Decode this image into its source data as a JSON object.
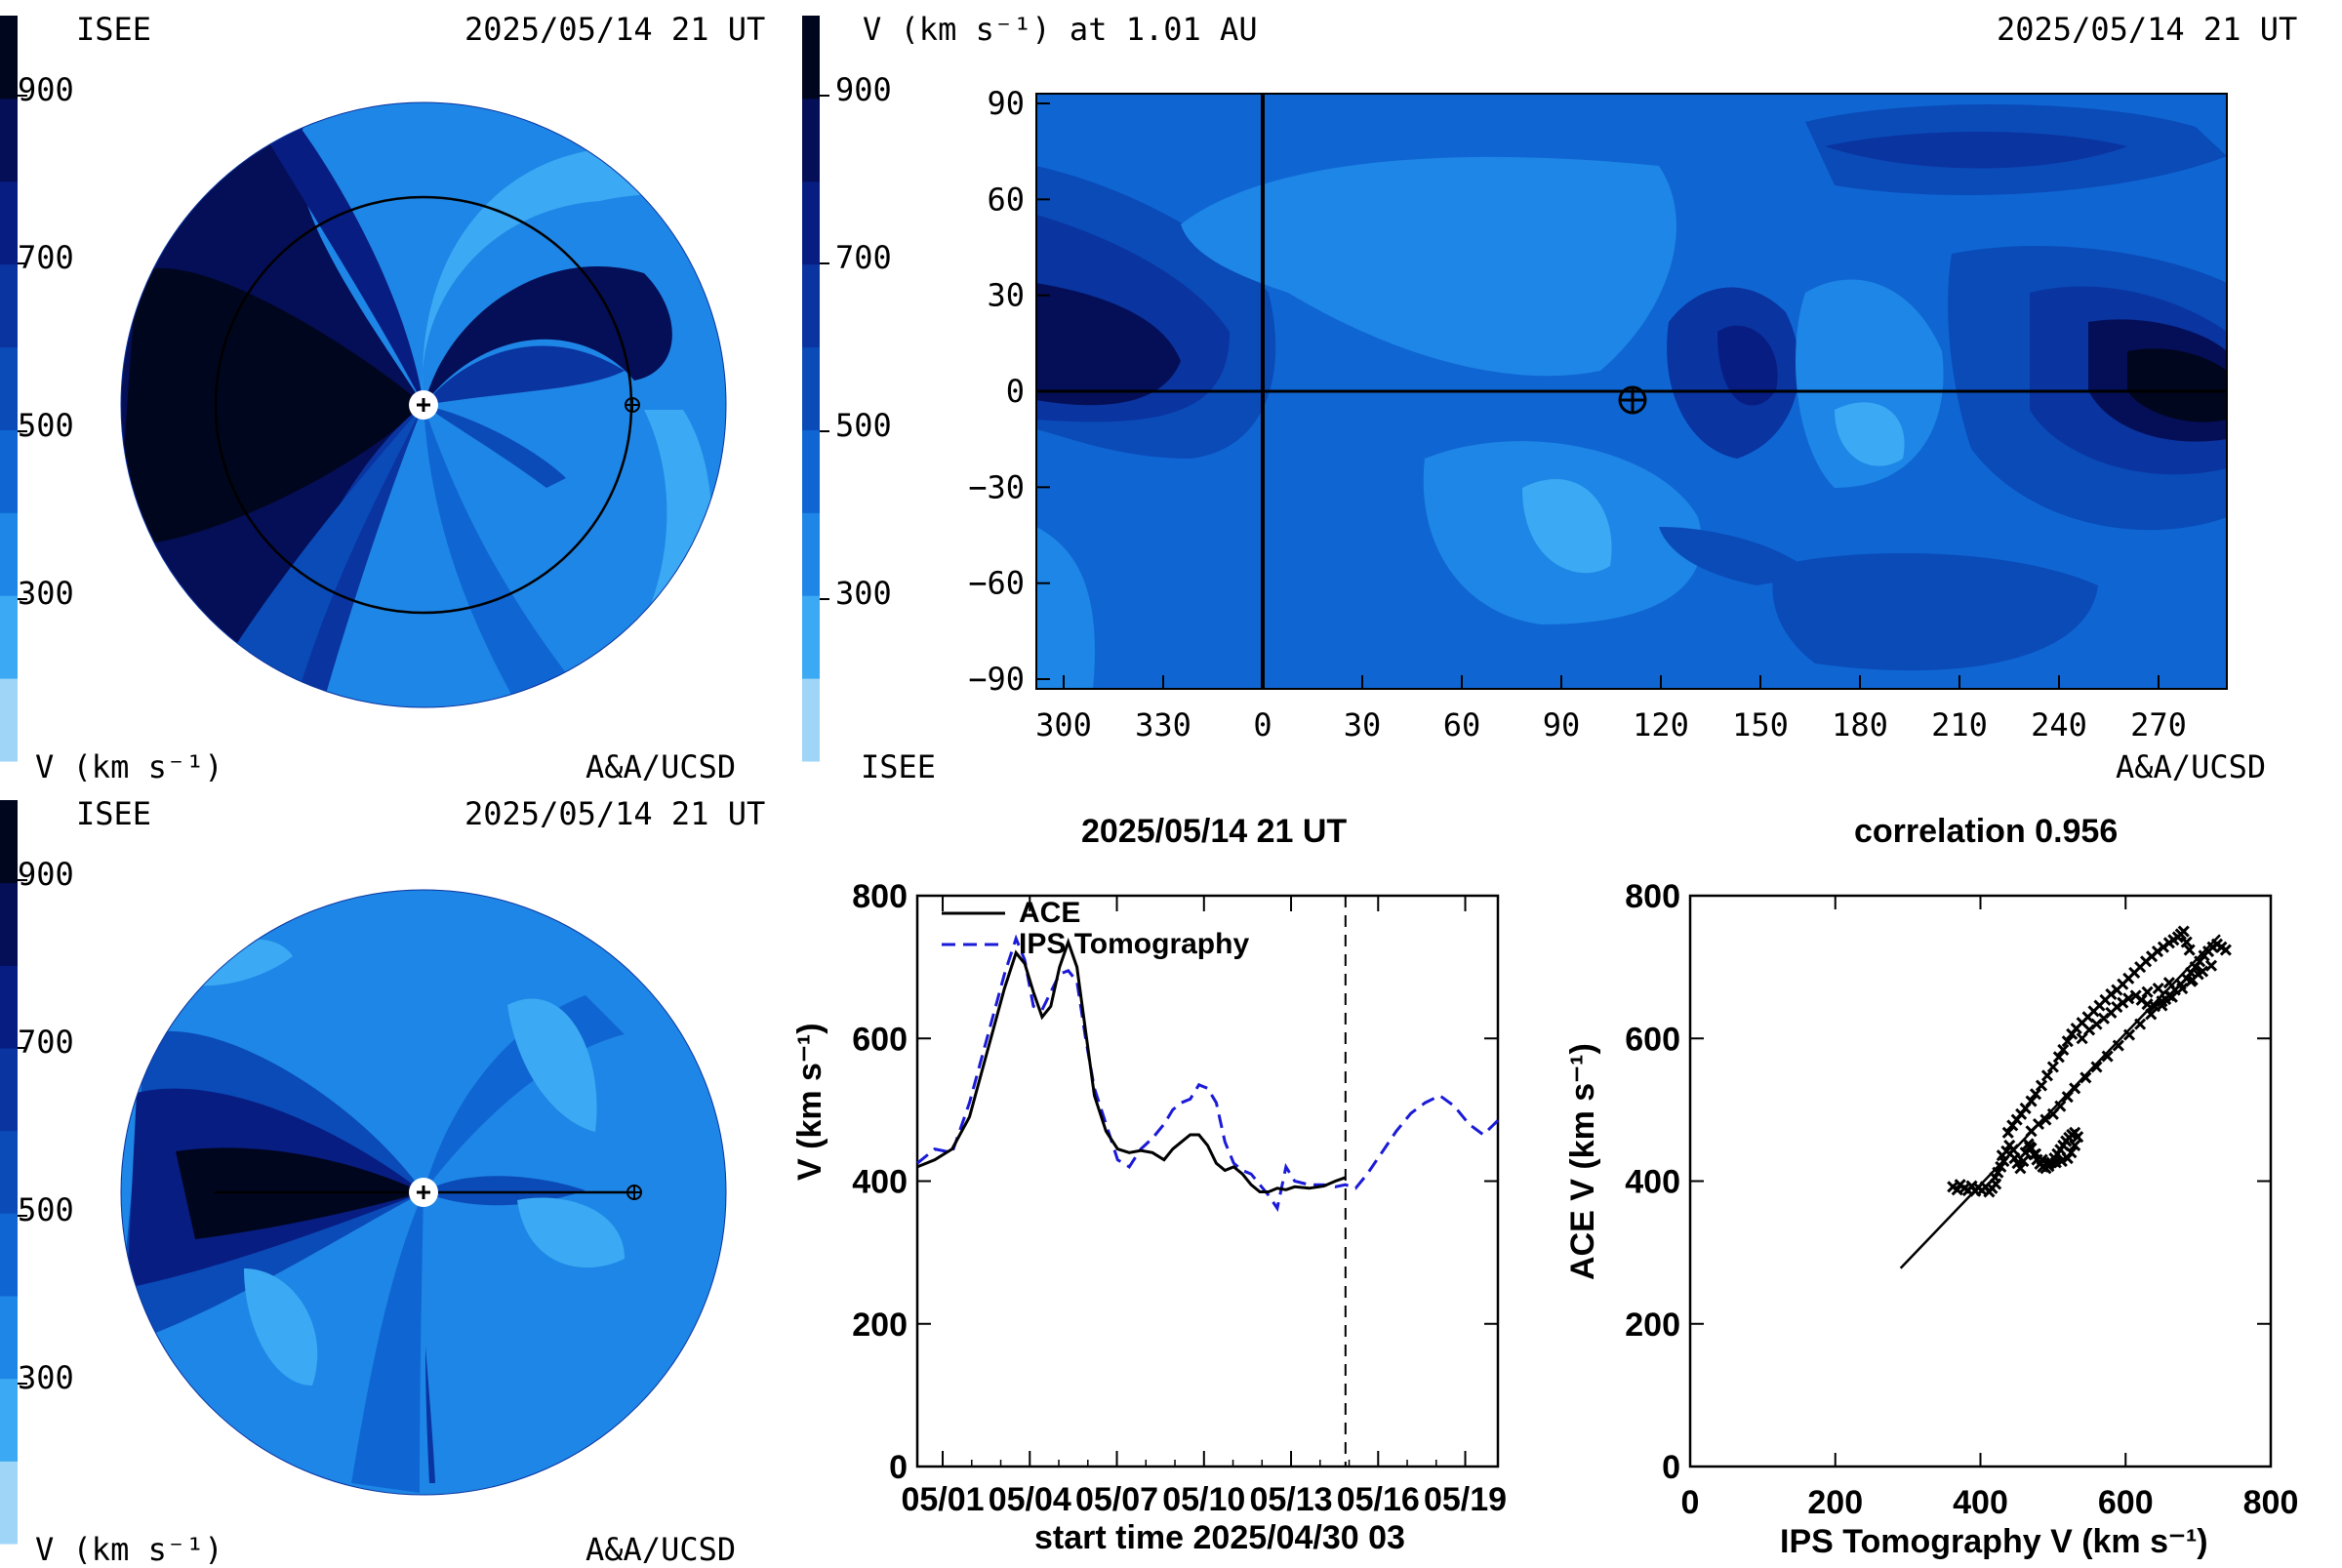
{
  "colors": {
    "scale": [
      "#9fd6f7",
      "#3ba9f3",
      "#1e86e6",
      "#0f66d3",
      "#0a4bb8",
      "#0a34a0",
      "#081d82",
      "#050f57",
      "#01061f"
    ],
    "ace": "#000000",
    "ips": "#1a1ad8"
  },
  "top_left": {
    "source": "ISEE",
    "datetime": "2025/05/14 21 UT",
    "colorbar_ticks": [
      "900",
      "700",
      "500",
      "300"
    ],
    "colorbar_label": "V (km s⁻¹)",
    "credit": "A&A/UCSD",
    "sun_icon": "sun-symbol-icon",
    "earth_icon": "earth-symbol-icon"
  },
  "top_right": {
    "title": "V (km s⁻¹) at 1.01 AU",
    "datetime": "2025/05/14 21 UT",
    "source": "ISEE",
    "credit": "A&A/UCSD",
    "colorbar_ticks": [
      "900",
      "700",
      "500",
      "300"
    ],
    "y_ticks": [
      "90",
      "60",
      "30",
      "0",
      "−30",
      "−60",
      "−90"
    ],
    "x_ticks": [
      "300",
      "330",
      "0",
      "30",
      "60",
      "90",
      "120",
      "150",
      "180",
      "210",
      "240",
      "270"
    ],
    "earth_icon": "earth-symbol-icon"
  },
  "bottom_left": {
    "source": "ISEE",
    "datetime": "2025/05/14 21 UT",
    "colorbar_ticks": [
      "900",
      "700",
      "500",
      "300"
    ],
    "colorbar_label": "V (km s⁻¹)",
    "credit": "A&A/UCSD",
    "sun_icon": "sun-symbol-icon",
    "earth_icon": "earth-symbol-icon"
  },
  "chart_data": [
    {
      "type": "line",
      "title": "2025/05/14 21 UT",
      "xlabel": "start time 2025/04/30 03",
      "ylabel": "V (km s⁻¹)",
      "x_tick_labels": [
        "05/01",
        "05/04",
        "05/07",
        "05/10",
        "05/13",
        "05/16",
        "05/19"
      ],
      "x_tick_days": [
        0.875,
        3.875,
        6.875,
        9.875,
        12.875,
        15.875,
        18.875
      ],
      "y_ticks": [
        0,
        200,
        400,
        600,
        800
      ],
      "xlim": [
        0,
        20
      ],
      "ylim": [
        0,
        800
      ],
      "vline_day": 14.75,
      "legend": "top-left",
      "series": [
        {
          "name": "ACE",
          "style": "solid",
          "x": [
            0,
            0.6,
            1.2,
            1.8,
            2.4,
            3.0,
            3.4,
            3.7,
            4.0,
            4.3,
            4.6,
            4.9,
            5.2,
            5.5,
            5.8,
            6.1,
            6.5,
            6.9,
            7.3,
            7.7,
            8.1,
            8.5,
            8.8,
            9.1,
            9.4,
            9.7,
            10.0,
            10.3,
            10.6,
            10.9,
            11.2,
            11.5,
            11.8,
            12.1,
            12.4,
            12.7,
            13.0,
            13.5,
            14.0,
            14.4,
            14.75
          ],
          "y": [
            420,
            430,
            445,
            490,
            580,
            670,
            720,
            705,
            665,
            630,
            645,
            700,
            735,
            700,
            610,
            520,
            470,
            445,
            440,
            443,
            440,
            430,
            445,
            455,
            465,
            465,
            450,
            425,
            415,
            420,
            410,
            395,
            385,
            385,
            390,
            388,
            392,
            390,
            393,
            400,
            405
          ]
        },
        {
          "name": "IPS Tomography",
          "style": "dashed",
          "x": [
            0,
            0.6,
            1.2,
            1.8,
            2.4,
            3.0,
            3.4,
            3.7,
            4.0,
            4.3,
            4.6,
            4.9,
            5.2,
            5.5,
            5.8,
            6.1,
            6.5,
            6.9,
            7.3,
            7.7,
            8.1,
            8.5,
            8.8,
            9.1,
            9.4,
            9.7,
            10.0,
            10.3,
            10.6,
            10.9,
            11.2,
            11.5,
            11.8,
            12.1,
            12.4,
            12.7,
            13.0,
            13.5,
            14.0,
            14.4,
            14.75,
            15.1,
            15.5,
            16.0,
            16.5,
            17.0,
            17.5,
            18.0,
            18.5,
            19.0,
            19.5,
            20.0
          ],
          "y": [
            425,
            445,
            440,
            510,
            600,
            690,
            740,
            710,
            645,
            640,
            665,
            690,
            695,
            680,
            600,
            530,
            480,
            430,
            420,
            445,
            460,
            480,
            500,
            510,
            515,
            535,
            530,
            510,
            455,
            425,
            415,
            410,
            395,
            380,
            362,
            420,
            400,
            395,
            395,
            392,
            395,
            390,
            410,
            440,
            470,
            495,
            510,
            520,
            505,
            480,
            465,
            485
          ]
        }
      ]
    },
    {
      "type": "scatter",
      "title": "correlation 0.956",
      "xlabel": "IPS Tomography V (km s⁻¹)",
      "ylabel": "ACE V (km s⁻¹)",
      "x_ticks": [
        0,
        200,
        400,
        600,
        800
      ],
      "y_ticks": [
        0,
        200,
        400,
        600,
        800
      ],
      "xlim": [
        0,
        800
      ],
      "ylim": [
        0,
        800
      ],
      "fit_line": {
        "x": [
          290,
          730
        ],
        "y": [
          278,
          745
        ]
      },
      "points": [
        [
          362,
          392
        ],
        [
          368,
          388
        ],
        [
          372,
          395
        ],
        [
          378,
          390
        ],
        [
          383,
          387
        ],
        [
          388,
          393
        ],
        [
          393,
          386
        ],
        [
          397,
          391
        ],
        [
          402,
          387
        ],
        [
          407,
          392
        ],
        [
          412,
          385
        ],
        [
          416,
          390
        ],
        [
          421,
          396
        ],
        [
          420,
          405
        ],
        [
          424,
          412
        ],
        [
          428,
          420
        ],
        [
          432,
          428
        ],
        [
          430,
          436
        ],
        [
          436,
          442
        ],
        [
          440,
          450
        ],
        [
          445,
          444
        ],
        [
          447,
          432
        ],
        [
          451,
          425
        ],
        [
          455,
          418
        ],
        [
          459,
          428
        ],
        [
          462,
          440
        ],
        [
          466,
          452
        ],
        [
          470,
          446
        ],
        [
          474,
          437
        ],
        [
          478,
          430
        ],
        [
          482,
          424
        ],
        [
          486,
          420
        ],
        [
          490,
          418
        ],
        [
          494,
          421
        ],
        [
          498,
          426
        ],
        [
          502,
          432
        ],
        [
          506,
          438
        ],
        [
          510,
          444
        ],
        [
          514,
          450
        ],
        [
          518,
          456
        ],
        [
          522,
          461
        ],
        [
          526,
          465
        ],
        [
          530,
          468
        ],
        [
          534,
          462
        ],
        [
          530,
          450
        ],
        [
          525,
          440
        ],
        [
          520,
          432
        ],
        [
          512,
          428
        ],
        [
          504,
          426
        ],
        [
          495,
          425
        ],
        [
          485,
          430
        ],
        [
          476,
          438
        ],
        [
          468,
          448
        ],
        [
          438,
          468
        ],
        [
          444,
          478
        ],
        [
          450,
          486
        ],
        [
          456,
          494
        ],
        [
          462,
          502
        ],
        [
          470,
          512
        ],
        [
          476,
          522
        ],
        [
          484,
          534
        ],
        [
          492,
          548
        ],
        [
          500,
          560
        ],
        [
          508,
          574
        ],
        [
          514,
          584
        ],
        [
          520,
          596
        ],
        [
          526,
          606
        ],
        [
          532,
          614
        ],
        [
          540,
          622
        ],
        [
          548,
          630
        ],
        [
          556,
          638
        ],
        [
          564,
          646
        ],
        [
          572,
          654
        ],
        [
          580,
          662
        ],
        [
          588,
          668
        ],
        [
          596,
          676
        ],
        [
          604,
          684
        ],
        [
          612,
          692
        ],
        [
          620,
          700
        ],
        [
          628,
          708
        ],
        [
          636,
          715
        ],
        [
          644,
          722
        ],
        [
          652,
          728
        ],
        [
          660,
          734
        ],
        [
          666,
          738
        ],
        [
          672,
          742
        ],
        [
          676,
          746
        ],
        [
          680,
          750
        ],
        [
          684,
          735
        ],
        [
          688,
          724
        ],
        [
          540,
          600
        ],
        [
          550,
          612
        ],
        [
          560,
          620
        ],
        [
          570,
          628
        ],
        [
          580,
          636
        ],
        [
          588,
          644
        ],
        [
          596,
          650
        ],
        [
          604,
          656
        ],
        [
          614,
          660
        ],
        [
          622,
          654
        ],
        [
          630,
          648
        ],
        [
          640,
          645
        ],
        [
          650,
          652
        ],
        [
          660,
          660
        ],
        [
          668,
          668
        ],
        [
          676,
          676
        ],
        [
          684,
          684
        ],
        [
          690,
          692
        ],
        [
          696,
          700
        ],
        [
          702,
          708
        ],
        [
          708,
          716
        ],
        [
          714,
          722
        ],
        [
          720,
          728
        ],
        [
          726,
          732
        ],
        [
          732,
          728
        ],
        [
          738,
          724
        ],
        [
          470,
          470
        ],
        [
          480,
          480
        ],
        [
          490,
          486
        ],
        [
          500,
          494
        ],
        [
          510,
          505
        ],
        [
          520,
          518
        ],
        [
          530,
          530
        ],
        [
          545,
          545
        ],
        [
          560,
          560
        ],
        [
          575,
          575
        ],
        [
          590,
          590
        ],
        [
          605,
          605
        ],
        [
          620,
          620
        ],
        [
          635,
          634
        ],
        [
          650,
          646
        ],
        [
          664,
          658
        ],
        [
          678,
          670
        ],
        [
          692,
          682
        ],
        [
          706,
          694
        ],
        [
          718,
          702
        ],
        [
          700,
          690
        ],
        [
          690,
          680
        ],
        [
          660,
          678
        ],
        [
          645,
          670
        ],
        [
          630,
          665
        ],
        [
          655,
          655
        ]
      ]
    }
  ]
}
